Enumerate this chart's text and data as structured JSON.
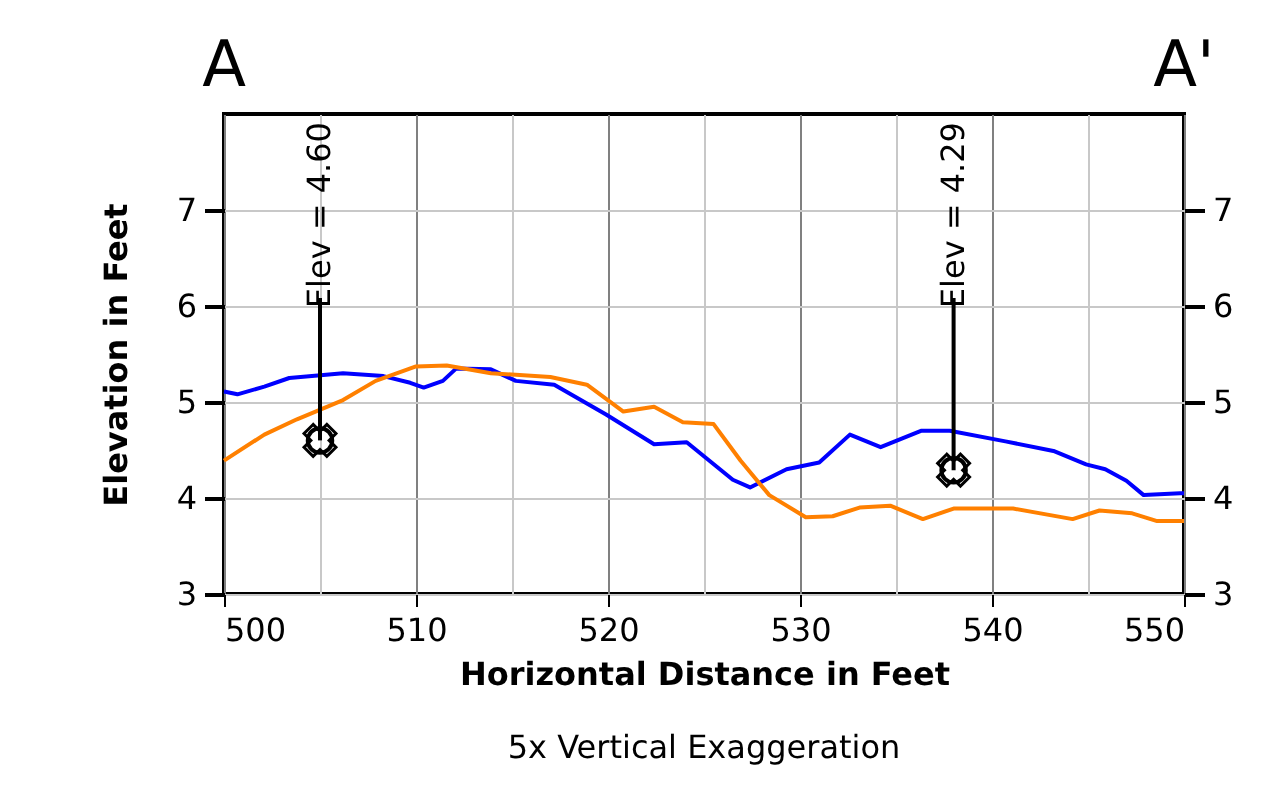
{
  "chart_data": {
    "type": "line",
    "xlabel": "Horizontal Distance in Feet",
    "ylabel": "Elevation in Feet",
    "xlim": [
      500,
      550
    ],
    "xticks": [
      500,
      {
        "value": 505,
        "label": null
      },
      510,
      {
        "value": 515,
        "label": null
      },
      520,
      {
        "value": 525,
        "label": null
      },
      530,
      {
        "value": 535,
        "label": null
      },
      540,
      {
        "value": 545,
        "label": null
      },
      550
    ],
    "ylim": [
      3,
      8
    ],
    "yticks": [
      3,
      4,
      5,
      6,
      7
    ],
    "y2lim": [
      3,
      8
    ],
    "y2ticks": [
      3,
      4,
      5,
      6,
      7
    ],
    "grid": true,
    "series": [
      {
        "color": "#0000ff",
        "x": [
          500,
          500.7,
          502.1,
          503.4,
          506.2,
          508.3,
          509.7,
          510.4,
          511.4,
          512.1,
          513.9,
          515.2,
          517.2,
          519.9,
          522.4,
          524.1,
          526.5,
          527.4,
          529.3,
          531.0,
          532.6,
          534.2,
          536.3,
          537.8,
          540.7,
          543.2,
          544.9,
          545.9,
          547,
          547.9,
          549.8,
          550
        ],
        "values": [
          5.11,
          5.08,
          5.16,
          5.25,
          5.3,
          5.27,
          5.2,
          5.15,
          5.22,
          5.35,
          5.34,
          5.22,
          5.18,
          4.87,
          4.56,
          4.58,
          4.19,
          4.11,
          4.3,
          4.37,
          4.66,
          4.53,
          4.7,
          4.7,
          4.59,
          4.49,
          4.35,
          4.3,
          4.18,
          4.03,
          4.05,
          4.05
        ]
      },
      {
        "color": "#ff8000",
        "x": [
          500,
          502.1,
          503.8,
          506.2,
          507.9,
          510,
          511.6,
          513.9,
          517,
          518.9,
          520.8,
          522.4,
          523.9,
          525.5,
          526.9,
          528.4,
          530.3,
          531.7,
          533.1,
          534.7,
          536.4,
          538,
          541.1,
          544.2,
          545.6,
          547.3,
          548.6,
          550
        ],
        "values": [
          4.39,
          4.66,
          4.82,
          5.02,
          5.22,
          5.37,
          5.38,
          5.3,
          5.26,
          5.18,
          4.9,
          4.95,
          4.79,
          4.77,
          4.39,
          4.03,
          3.8,
          3.81,
          3.9,
          3.92,
          3.78,
          3.89,
          3.89,
          3.78,
          3.87,
          3.84,
          3.76,
          3.76
        ]
      }
    ],
    "annotations": [
      "A",
      "A'",
      "5x Vertical Exaggeration",
      {
        "text": "Elev = 4.60",
        "x": 505,
        "y": 4.6
      },
      {
        "text": "Elev = 4.29",
        "x": 538,
        "y": 4.29
      }
    ]
  }
}
